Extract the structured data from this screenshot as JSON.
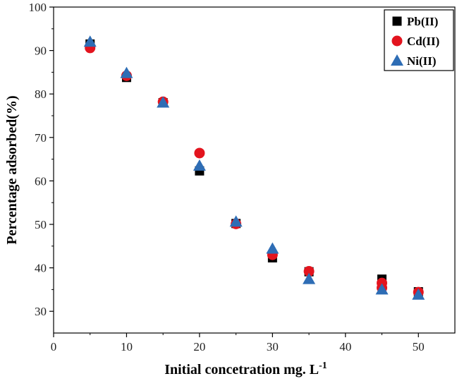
{
  "chart_data": {
    "type": "scatter",
    "title": "",
    "xlabel": "Initial concetration mg. L",
    "xlabel_superscript": "-1",
    "ylabel": "Percentage adsorbed(%)",
    "xlim": [
      0,
      55
    ],
    "ylim": [
      25,
      100
    ],
    "xticks": [
      "0",
      "10",
      "20",
      "30",
      "40",
      "50"
    ],
    "yticks": [
      "30",
      "40",
      "50",
      "60",
      "70",
      "80",
      "90",
      "100"
    ],
    "grid": false,
    "legend_position": "top-right",
    "series": [
      {
        "name": "Pb(II)",
        "marker": "square",
        "color": "#000000",
        "x": [
          5,
          10,
          15,
          20,
          25,
          30,
          35,
          45,
          50
        ],
        "y": [
          91.5,
          83.8,
          78.0,
          62.3,
          50.2,
          42.3,
          39.1,
          37.4,
          34.5
        ]
      },
      {
        "name": "Cd(II)",
        "marker": "circle",
        "color": "#e3141e",
        "x": [
          5,
          10,
          15,
          20,
          25,
          30,
          35,
          45,
          45,
          50
        ],
        "y": [
          90.6,
          84.2,
          78.2,
          66.4,
          50.1,
          43.0,
          39.2,
          36.5,
          35.4,
          34.4
        ]
      },
      {
        "name": "Ni(II)",
        "marker": "triangle",
        "color": "#2e6db5",
        "x": [
          5,
          10,
          15,
          20,
          25,
          30,
          35,
          45,
          50
        ],
        "y": [
          92.0,
          84.8,
          78.0,
          63.5,
          50.6,
          44.4,
          37.4,
          35.0,
          33.8
        ]
      }
    ]
  }
}
